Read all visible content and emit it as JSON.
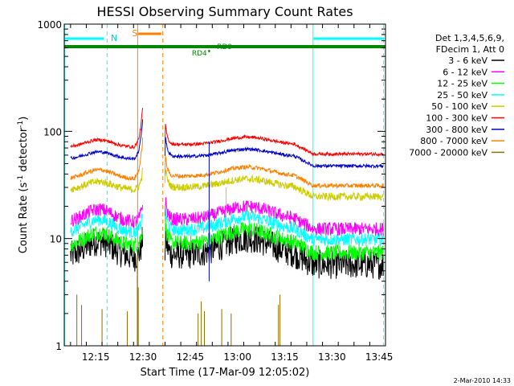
{
  "chart_data": {
    "type": "line",
    "title": "HESSI Observing Summary Count Rates",
    "xlabel": "Start Time (17-Mar-09 12:05:02)",
    "ylabel_main": "Count Rate (s",
    "ylabel_sup": "-1",
    "ylabel_mid": " detector",
    "ylabel_sup2": "-1",
    "ylabel_end": ")",
    "y_scale": "log",
    "ylim": [
      1,
      1000
    ],
    "xlim_minutes": [
      725,
      827
    ],
    "x_ticks": [
      {
        "t": 735,
        "label": "12:15"
      },
      {
        "t": 750,
        "label": "12:30"
      },
      {
        "t": 765,
        "label": "12:45"
      },
      {
        "t": 780,
        "label": "13:00"
      },
      {
        "t": 795,
        "label": "13:15"
      },
      {
        "t": 810,
        "label": "13:30"
      },
      {
        "t": 825,
        "label": "13:45"
      }
    ],
    "y_ticks": [
      {
        "v": 1,
        "label": "1"
      },
      {
        "v": 10,
        "label": "10"
      },
      {
        "v": 100,
        "label": "100"
      },
      {
        "v": 1000,
        "label": "1000"
      }
    ],
    "legend_header": [
      "Det 1,3,4,5,6,9,",
      "FDecim 1, Att 0"
    ],
    "legend_position": "right",
    "series": [
      {
        "name": "3 - 6 keV",
        "color": "#000000"
      },
      {
        "name": "6 - 12 keV",
        "color": "#ff00ff"
      },
      {
        "name": "12 - 25 keV",
        "color": "#00ff00"
      },
      {
        "name": "25 - 50 keV",
        "color": "#00ffff"
      },
      {
        "name": "50 - 100 keV",
        "color": "#cccc00"
      },
      {
        "name": "100 - 300 keV",
        "color": "#ff0000"
      },
      {
        "name": "300 - 800 keV",
        "color": "#0000cc"
      },
      {
        "name": "800 - 7000 keV",
        "color": "#ff8000"
      },
      {
        "name": "7000 - 20000 keV",
        "color": "#8b6d00"
      }
    ],
    "annotations": {
      "night_label": "N",
      "saa_label": "S",
      "rd_label_1": "RD4",
      "rd_label_2": "RD9"
    },
    "timestamp": "2-Mar-2010 14:33"
  }
}
